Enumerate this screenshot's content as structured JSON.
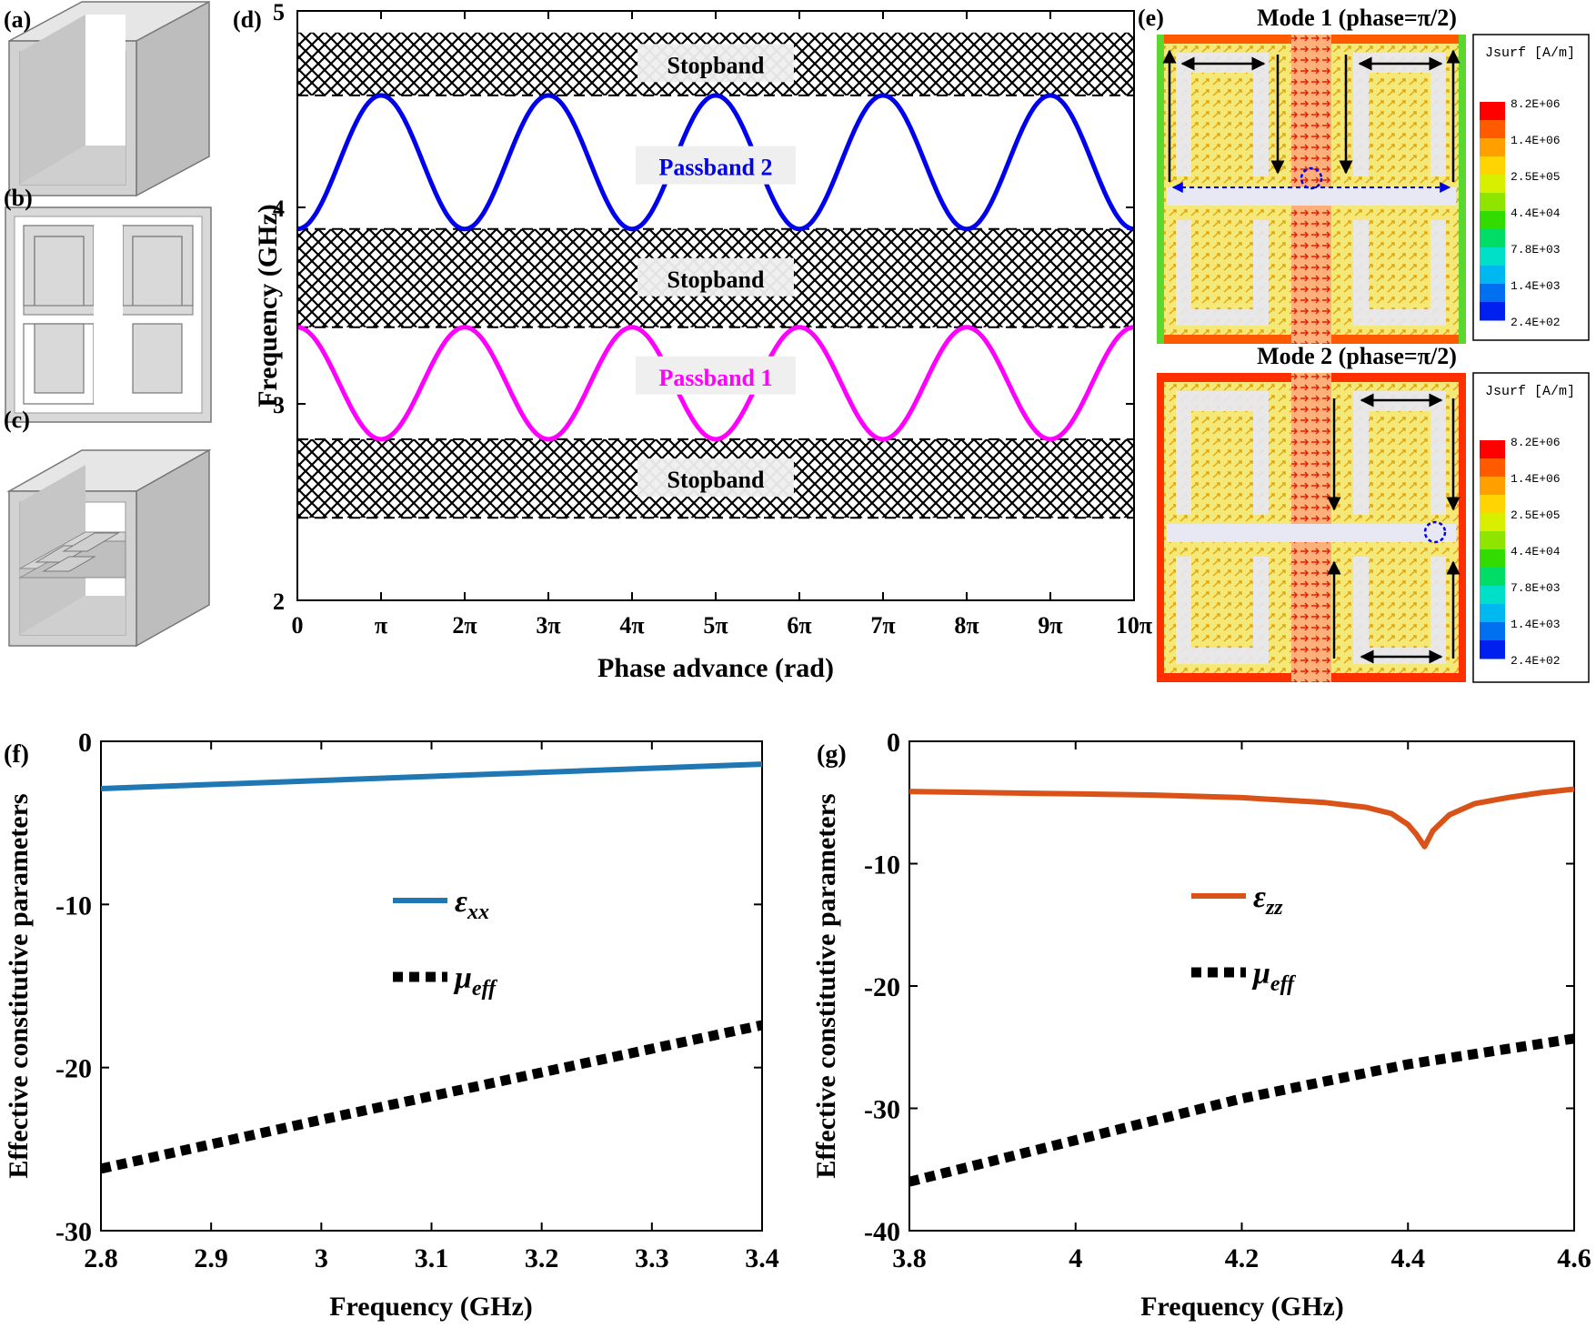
{
  "panels": {
    "a": "(a)",
    "b": "(b)",
    "c": "(c)",
    "d": "(d)",
    "e": "(e)",
    "f": "(f)",
    "g": "(g)"
  },
  "colors": {
    "passband1": "#ff00ff",
    "passband2": "#0000ee",
    "eps_xx": "#1f77b4",
    "eps_zz": "#d95319",
    "mu": "#000000",
    "stop_fill": "#000000"
  },
  "mode_panels": {
    "mode1_title": "Mode 1 (phase=π/2)",
    "mode2_title": "Mode 2 (phase=π/2)",
    "legend_title": "Jsurf [A/m]",
    "legend_values": [
      "8.2E+06",
      "1.4E+06",
      "2.5E+05",
      "4.4E+04",
      "7.8E+03",
      "1.4E+03",
      "2.4E+02"
    ],
    "legend_colors": [
      "#ff0000",
      "#ff5a00",
      "#ff9f00",
      "#ffd400",
      "#d8ef00",
      "#8fe400",
      "#32dc00",
      "#00dc66",
      "#00e0c8",
      "#00b8f0",
      "#0070f0",
      "#0020f0"
    ]
  },
  "chart_data": [
    {
      "id": "d",
      "type": "line",
      "xlabel": "Phase advance (rad)",
      "ylabel": "Frequency (GHz)",
      "xlim": [
        0,
        10
      ],
      "ylim": [
        2,
        5
      ],
      "xticks": [
        0,
        1,
        2,
        3,
        4,
        5,
        6,
        7,
        8,
        9,
        10
      ],
      "xticklabels": [
        "0",
        "π",
        "2π",
        "3π",
        "4π",
        "5π",
        "6π",
        "7π",
        "8π",
        "9π",
        "10π"
      ],
      "yticks": [
        2,
        3,
        4,
        5
      ],
      "yticklabels": [
        "2",
        "3",
        "4",
        "5"
      ],
      "series": [
        {
          "name": "Passband 2",
          "min": 3.89,
          "max": 4.57,
          "color": "#0000ee"
        },
        {
          "name": "Passband 1",
          "min": 2.82,
          "max": 3.39,
          "color": "#ff00ff"
        }
      ],
      "stopbands": [
        {
          "label": "Stopband",
          "from": 4.57,
          "to": 4.89
        },
        {
          "label": "Stopband",
          "from": 3.39,
          "to": 3.89
        },
        {
          "label": "Stopband",
          "from": 2.42,
          "to": 2.82
        }
      ],
      "band_labels": [
        {
          "text": "Passband 2",
          "y": 4.21,
          "color": "#0000ee"
        },
        {
          "text": "Passband 1",
          "y": 3.14,
          "color": "#ff00ff"
        }
      ]
    },
    {
      "id": "f",
      "type": "line",
      "xlabel": "Frequency (GHz)",
      "ylabel": "Effective constitutive parameters",
      "xlim": [
        2.8,
        3.4
      ],
      "ylim": [
        -30,
        0
      ],
      "xticks": [
        2.8,
        2.9,
        3.0,
        3.1,
        3.2,
        3.3,
        3.4
      ],
      "xticklabels": [
        "2.8",
        "2.9",
        "3",
        "3.1",
        "3.2",
        "3.3",
        "3.4"
      ],
      "yticks": [
        -30,
        -20,
        -10,
        0
      ],
      "yticklabels": [
        "-30",
        "-20",
        "-10",
        "0"
      ],
      "series": [
        {
          "name": "ε",
          "sub": "xx",
          "x": [
            2.8,
            3.4
          ],
          "y": [
            -2.9,
            -1.4
          ],
          "style": "solid"
        },
        {
          "name": "μ",
          "sub": "eff",
          "x": [
            2.8,
            3.0,
            3.2,
            3.4
          ],
          "y": [
            -26.2,
            -23.2,
            -20.3,
            -17.4
          ],
          "style": "dotted"
        }
      ]
    },
    {
      "id": "g",
      "type": "line",
      "xlabel": "Frequency (GHz)",
      "ylabel": "Effective constitutive parameters",
      "xlim": [
        3.8,
        4.6
      ],
      "ylim": [
        -40,
        0
      ],
      "xticks": [
        3.8,
        4.0,
        4.2,
        4.4,
        4.6
      ],
      "xticklabels": [
        "3.8",
        "4",
        "4.2",
        "4.4",
        "4.6"
      ],
      "yticks": [
        -40,
        -30,
        -20,
        -10,
        0
      ],
      "yticklabels": [
        "-40",
        "-30",
        "-20",
        "-10",
        "0"
      ],
      "series": [
        {
          "name": "ε",
          "sub": "zz",
          "x": [
            3.8,
            3.9,
            4.0,
            4.1,
            4.2,
            4.3,
            4.35,
            4.38,
            4.4,
            4.41,
            4.42,
            4.43,
            4.45,
            4.48,
            4.52,
            4.56,
            4.6
          ],
          "y": [
            -4.1,
            -4.2,
            -4.3,
            -4.4,
            -4.6,
            -5.0,
            -5.4,
            -5.9,
            -6.8,
            -7.6,
            -8.6,
            -7.3,
            -6.0,
            -5.1,
            -4.6,
            -4.2,
            -3.9
          ],
          "style": "solid"
        },
        {
          "name": "μ",
          "sub": "eff",
          "x": [
            3.8,
            4.0,
            4.2,
            4.4,
            4.6
          ],
          "y": [
            -36.0,
            -32.6,
            -29.2,
            -26.4,
            -24.3
          ],
          "style": "dotted"
        }
      ]
    }
  ]
}
